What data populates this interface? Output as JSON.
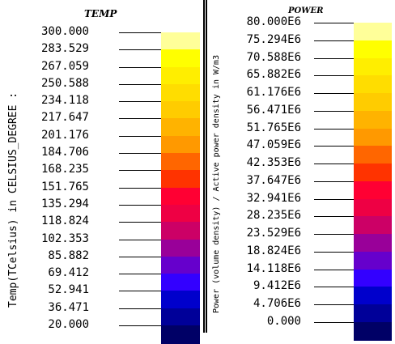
{
  "temp_legend": {
    "title": "TEMP",
    "axis_label": "Temp(TCelsius) in CELSIUS_DEGREE :",
    "tick_labels": [
      "300.000",
      "283.529",
      "267.059",
      "250.588",
      "234.118",
      "217.647",
      "201.176",
      "184.706",
      "168.235",
      "151.765",
      "135.294",
      "118.824",
      "102.353",
      "85.882",
      "69.412",
      "52.941",
      "36.471",
      "20.000"
    ],
    "band_colors": [
      "#FFFF99",
      "#FFFF00",
      "#FFEE00",
      "#FFDD00",
      "#FFCC00",
      "#FFB300",
      "#FF9900",
      "#FF6600",
      "#FF3300",
      "#FF0033",
      "#EE0044",
      "#CC0066",
      "#990099",
      "#6600CC",
      "#3300FF",
      "#0000CC",
      "#000099",
      "#000066"
    ]
  },
  "power_legend": {
    "title": "POWER",
    "axis_label": "Power (volume density) / Active power density in W/m3",
    "tick_labels": [
      "80.000E6",
      "75.294E6",
      "70.588E6",
      "65.882E6",
      "61.176E6",
      "56.471E6",
      "51.765E6",
      "47.059E6",
      "42.353E6",
      "37.647E6",
      "32.941E6",
      "28.235E6",
      "23.529E6",
      "18.824E6",
      "14.118E6",
      "9.412E6",
      "4.706E6",
      "0.000"
    ],
    "band_colors": [
      "#FFFF99",
      "#FFFF00",
      "#FFEE00",
      "#FFDD00",
      "#FFCC00",
      "#FFB300",
      "#FF9900",
      "#FF6600",
      "#FF3300",
      "#FF0033",
      "#EE0044",
      "#CC0066",
      "#990099",
      "#6600CC",
      "#3300FF",
      "#0000CC",
      "#000099",
      "#000066"
    ]
  }
}
